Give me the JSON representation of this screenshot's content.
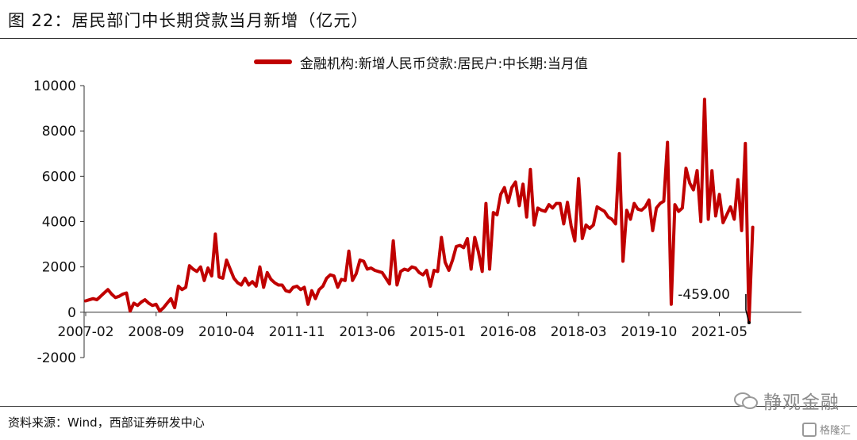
{
  "header": {
    "title": "图 22：居民部门中长期贷款当月新增（亿元）"
  },
  "footer": {
    "source": "资料来源：Wind，西部证券研发中心",
    "watermark": "静观金融",
    "logo_text": "格隆汇"
  },
  "colors": {
    "series": "#c00000",
    "rule": "#333333"
  },
  "chart_data": {
    "type": "line",
    "title": "",
    "xlabel": "",
    "ylabel": "",
    "ylim": [
      -2000,
      10000
    ],
    "yticks": [
      -2000,
      0,
      2000,
      4000,
      6000,
      8000,
      10000
    ],
    "xtick_labels": [
      "2007-02",
      "2008-09",
      "2010-04",
      "2011-11",
      "2013-06",
      "2015-01",
      "2016-08",
      "2018-03",
      "2019-10",
      "2021-05"
    ],
    "legend_position": "top-center",
    "grid": false,
    "series": [
      {
        "name": "金融机构:新增人民币贷款:居民户:中长期:当月值",
        "start": "2007-02",
        "values": [
          500,
          550,
          600,
          550,
          700,
          850,
          1000,
          800,
          650,
          700,
          800,
          850,
          50,
          400,
          300,
          450,
          550,
          400,
          300,
          350,
          50,
          200,
          400,
          600,
          200,
          1150,
          1000,
          1100,
          2050,
          1900,
          1800,
          2000,
          1400,
          1950,
          1600,
          3450,
          1550,
          1500,
          2300,
          1900,
          1500,
          1300,
          1200,
          1500,
          1200,
          1350,
          1150,
          2000,
          1100,
          1750,
          1450,
          1300,
          1200,
          1200,
          950,
          900,
          1100,
          1150,
          1000,
          1100,
          350,
          950,
          600,
          1000,
          1150,
          1500,
          1650,
          1600,
          1100,
          1450,
          1400,
          2700,
          1400,
          1700,
          2300,
          2250,
          1900,
          1950,
          1850,
          1800,
          1750,
          1500,
          1250,
          3150,
          1200,
          1800,
          1900,
          1850,
          2000,
          1950,
          1750,
          1650,
          1850,
          1150,
          1850,
          1800,
          3300,
          2200,
          1850,
          2300,
          2900,
          2950,
          2850,
          3250,
          1900,
          3300,
          2650,
          1800,
          4800,
          1900,
          4400,
          4300,
          5200,
          5500,
          4850,
          5500,
          5750,
          4700,
          5650,
          4200,
          6300,
          3850,
          4600,
          4500,
          4450,
          4750,
          4600,
          4800,
          4800,
          3900,
          4850,
          3800,
          3150,
          5900,
          3250,
          3850,
          3700,
          3850,
          4650,
          4550,
          4450,
          4200,
          4100,
          3900,
          7000,
          2250,
          4500,
          4100,
          4800,
          4550,
          4500,
          4650,
          4950,
          3600,
          4600,
          4800,
          4900,
          7500,
          350,
          4750,
          4450,
          4600,
          6350,
          5700,
          5400,
          6250,
          4000,
          9400,
          4100,
          6250,
          4250,
          5200,
          3950,
          4300,
          4650,
          4100,
          5850,
          3600,
          7450,
          -459,
          3750
        ]
      }
    ],
    "annotations": [
      {
        "label": "-459.00",
        "value": -459
      }
    ]
  }
}
